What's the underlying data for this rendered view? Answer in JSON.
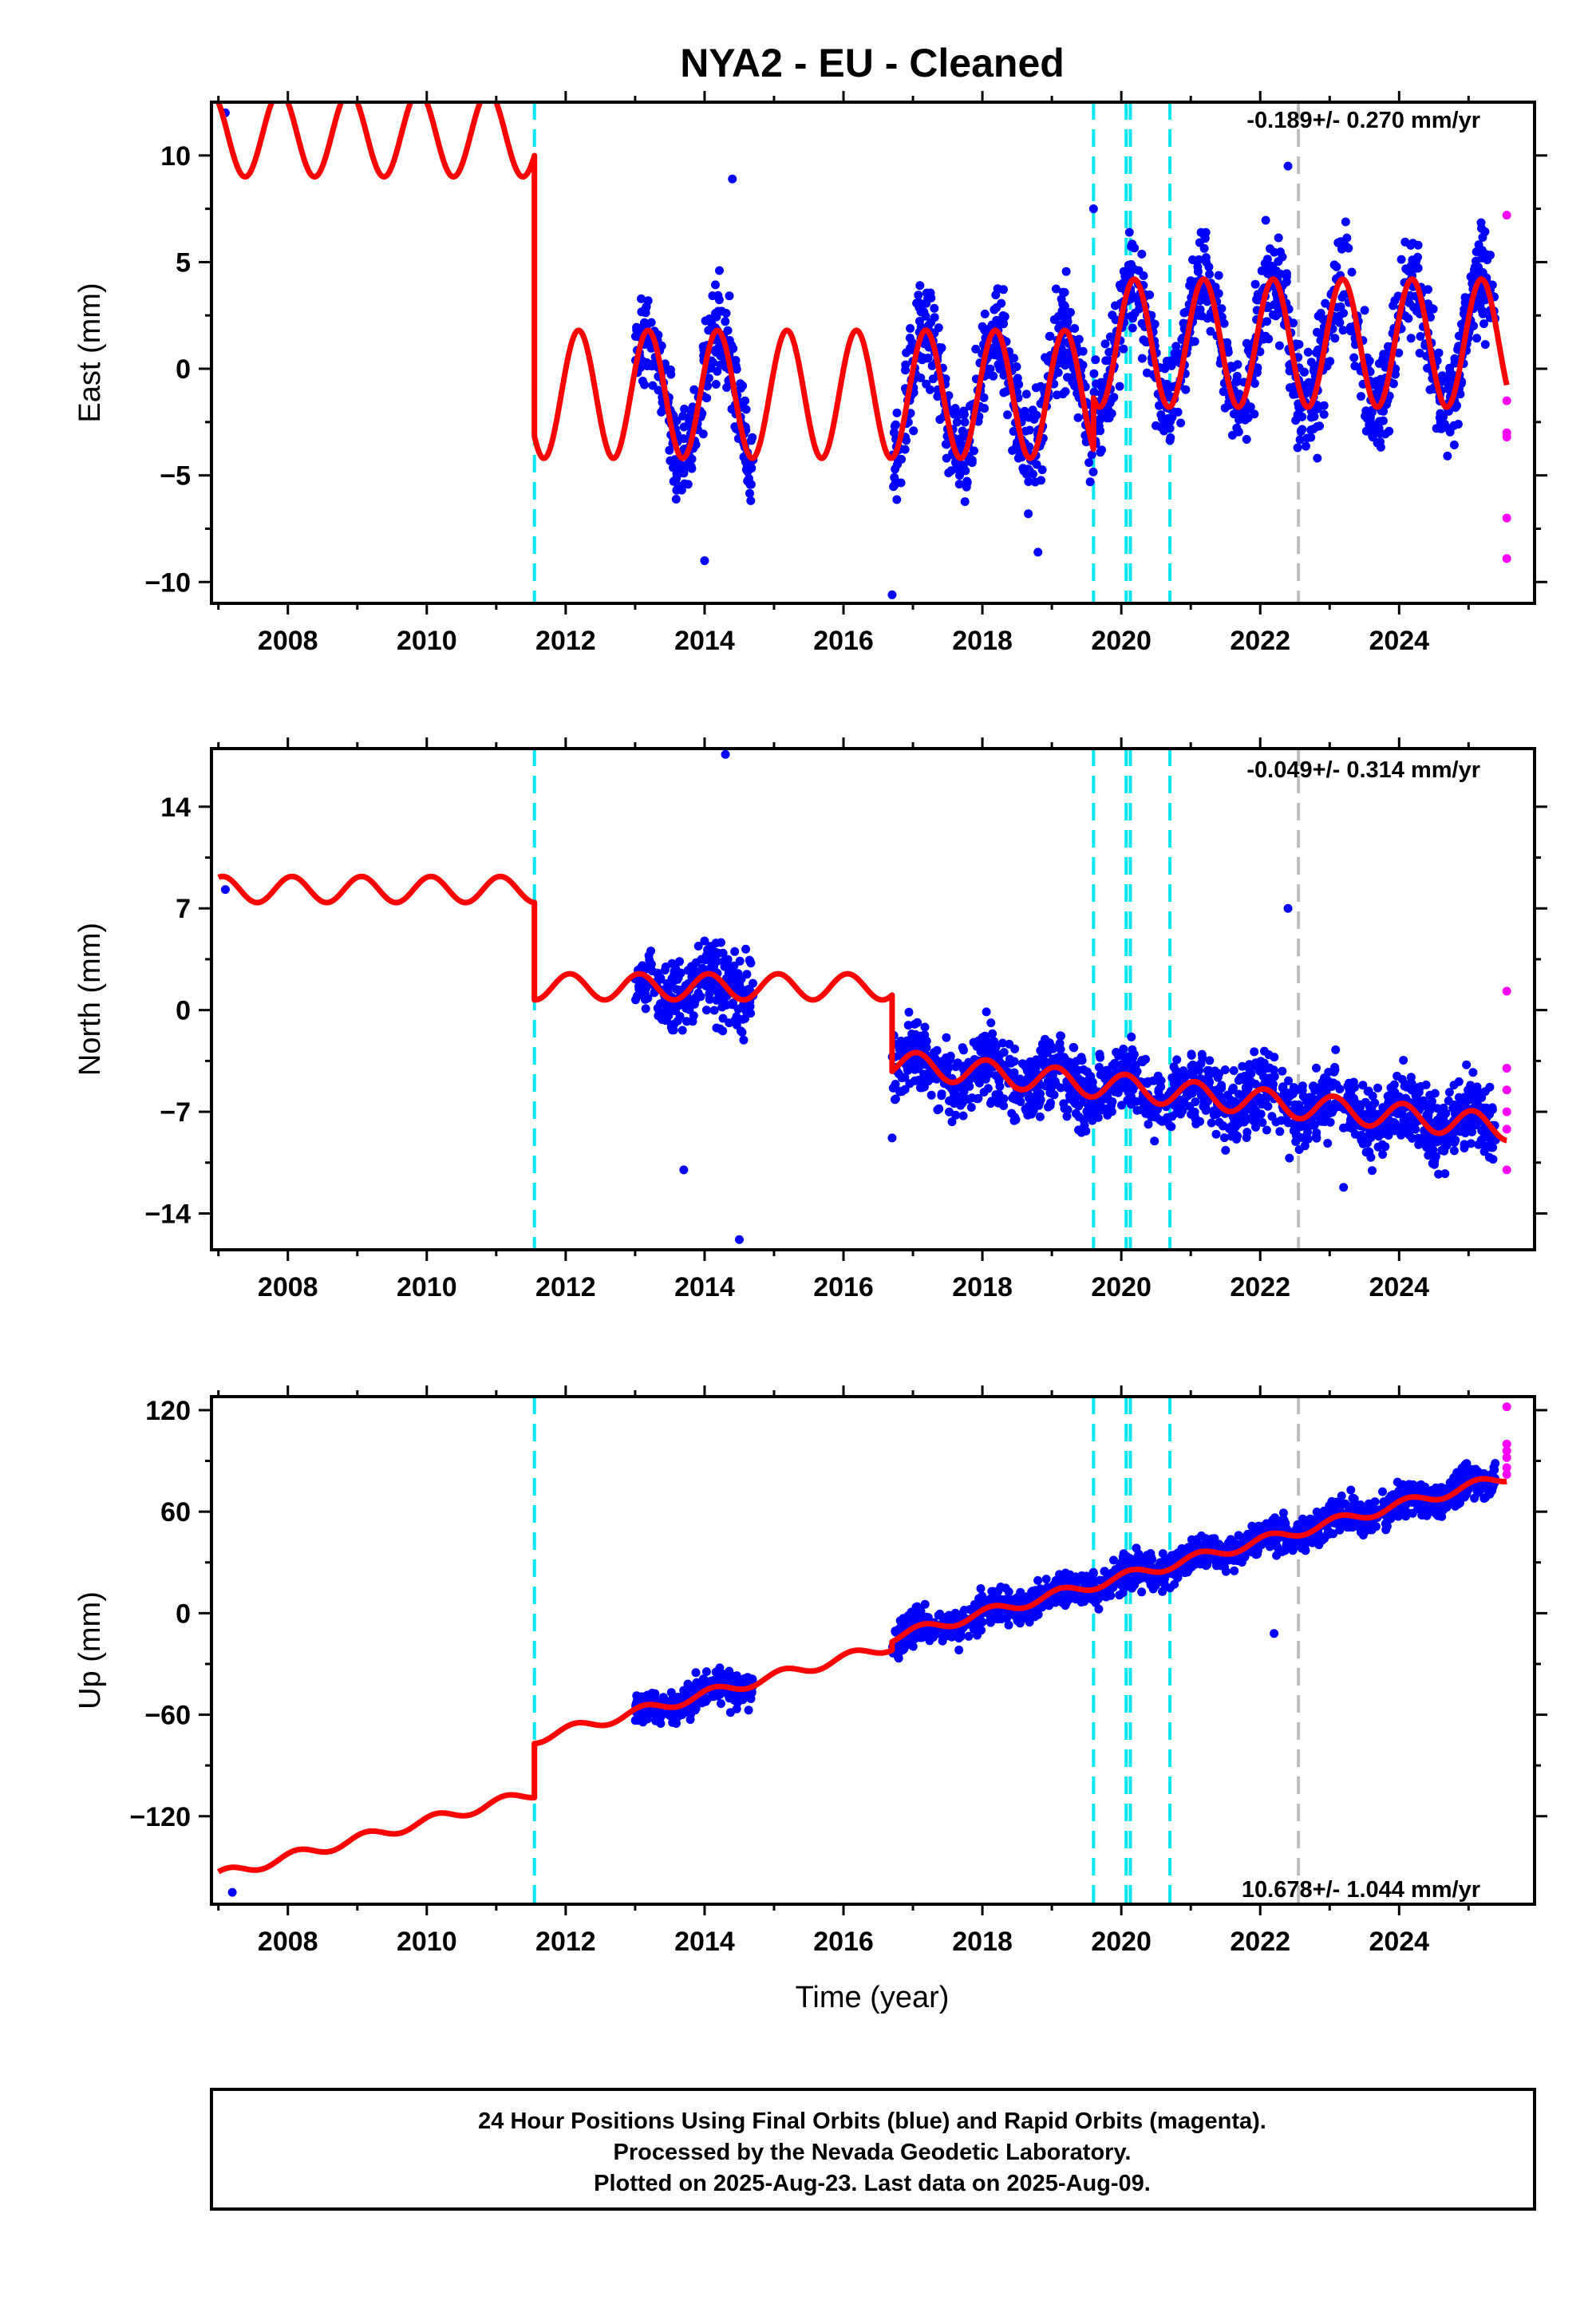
{
  "title": "NYA2  - EU - Cleaned",
  "xlabel": "Time (year)",
  "footer": {
    "line1": "24 Hour Positions Using Final Orbits (blue) and Rapid Orbits (magenta).",
    "line2": "Processed by the Nevada Geodetic Laboratory.",
    "line3": "Plotted on 2025-Aug-23. Last data on 2025-Aug-09."
  },
  "colors": {
    "final_orbits": "#0000ff",
    "rapid_orbits": "#ff00ff",
    "model": "#ff0000",
    "equipment_change": "#00e5ee",
    "earthquake": "#bebebe"
  },
  "chart_data": [
    {
      "type": "scatter",
      "component": "East",
      "ylabel": "East (mm)",
      "rate": "-0.189+/- 0.270 mm/yr",
      "xlim": [
        2006.9,
        2025.95
      ],
      "ylim": [
        -11,
        12.5
      ],
      "xticks": [
        2008,
        2010,
        2012,
        2014,
        2016,
        2018,
        2020,
        2022,
        2024
      ],
      "yticks": [
        -10,
        -5,
        0,
        5,
        10
      ],
      "ytick_labels": [
        "−10",
        "−5",
        "0",
        "5",
        "10"
      ],
      "grid": false,
      "offsets_cyan": [
        2011.55,
        2019.6,
        2020.07,
        2020.13,
        2020.7
      ],
      "offsets_gray": [
        2022.55
      ],
      "model": {
        "segments": [
          {
            "t0": 2007.0,
            "t1": 2011.55,
            "c": 11.0,
            "v": 0.0,
            "amp": 2.0,
            "phase": 2.3
          },
          {
            "t0": 2011.55,
            "t1": 2019.6,
            "c": -1.2,
            "v": 0.0,
            "amp": 3.0,
            "phase": 0.4
          },
          {
            "t0": 2019.6,
            "t1": 2025.55,
            "c": 1.2,
            "v": 0.0,
            "amp": 3.0,
            "phase": 0.4
          }
        ]
      },
      "scatter_bands": [
        [
          2013.0,
          2014.7
        ],
        [
          2016.7,
          2025.4
        ]
      ],
      "scatter_noise": 1.6,
      "outliers": [
        [
          2007.1,
          12.0
        ],
        [
          2014.4,
          8.9
        ],
        [
          2016.7,
          -10.6
        ],
        [
          2022.4,
          9.5
        ],
        [
          2019.6,
          7.5
        ],
        [
          2014.0,
          -9.0
        ],
        [
          2018.8,
          -8.6
        ]
      ],
      "rapid": [
        [
          2025.55,
          7.2
        ],
        [
          2025.55,
          -1.5
        ],
        [
          2025.55,
          -3.0
        ],
        [
          2025.55,
          -3.2
        ],
        [
          2025.55,
          -7.0
        ],
        [
          2025.55,
          -8.9
        ]
      ]
    },
    {
      "type": "scatter",
      "component": "North",
      "ylabel": "North (mm)",
      "rate": "-0.049+/- 0.314 mm/yr",
      "xlim": [
        2006.9,
        2025.95
      ],
      "ylim": [
        -16.5,
        18
      ],
      "xticks": [
        2008,
        2010,
        2012,
        2014,
        2016,
        2018,
        2020,
        2022,
        2024
      ],
      "yticks": [
        -14,
        -7,
        0,
        7,
        14
      ],
      "ytick_labels": [
        "−14",
        "−7",
        "0",
        "7",
        "14"
      ],
      "grid": false,
      "offsets_cyan": [
        2011.55,
        2019.6,
        2020.07,
        2020.13,
        2020.7
      ],
      "offsets_gray": [
        2022.55
      ],
      "model": {
        "segments": [
          {
            "t0": 2007.0,
            "t1": 2011.55,
            "c": 8.3,
            "v": 0.0,
            "amp": 0.9,
            "phase": 1.2
          },
          {
            "t0": 2011.55,
            "t1": 2016.7,
            "c": 1.6,
            "v": 0.0,
            "amp": 0.9,
            "phase": 1.2
          },
          {
            "t0": 2016.7,
            "t1": 2025.55,
            "c": 1.2,
            "v": -0.5,
            "amp": 0.9,
            "phase": 1.2
          }
        ]
      },
      "scatter_bands": [
        [
          2013.0,
          2014.7
        ],
        [
          2016.7,
          2025.4
        ]
      ],
      "scatter_noise": 1.7,
      "outliers": [
        [
          2007.1,
          8.3
        ],
        [
          2014.3,
          17.6
        ],
        [
          2014.5,
          -15.8
        ],
        [
          2013.7,
          -11.0
        ],
        [
          2023.2,
          -12.2
        ],
        [
          2022.4,
          7.0
        ],
        [
          2016.7,
          -8.8
        ]
      ],
      "rapid": [
        [
          2025.55,
          1.3
        ],
        [
          2025.55,
          -4.0
        ],
        [
          2025.55,
          -5.5
        ],
        [
          2025.55,
          -7.0
        ],
        [
          2025.55,
          -8.2
        ],
        [
          2025.55,
          -11.0
        ]
      ]
    },
    {
      "type": "scatter",
      "component": "Up",
      "ylabel": "Up (mm)",
      "rate": "10.678+/- 1.044 mm/yr",
      "xlim": [
        2006.9,
        2025.95
      ],
      "ylim": [
        -172,
        128
      ],
      "xticks": [
        2008,
        2010,
        2012,
        2014,
        2016,
        2018,
        2020,
        2022,
        2024
      ],
      "yticks": [
        -120,
        -60,
        0,
        60,
        120
      ],
      "ytick_labels": [
        "−120",
        "−60",
        "0",
        "60",
        "120"
      ],
      "grid": false,
      "offsets_cyan": [
        2011.55,
        2019.6,
        2020.07,
        2020.13,
        2020.7
      ],
      "offsets_gray": [
        2022.55
      ],
      "model": {
        "segments": [
          {
            "t0": 2007.0,
            "t1": 2011.55,
            "c": -155.0,
            "v": 10.7,
            "amp": 3.0,
            "phase": 0.8
          },
          {
            "t0": 2011.55,
            "t1": 2016.7,
            "c": -123.0,
            "v": 10.7,
            "amp": 3.0,
            "phase": 0.8
          },
          {
            "t0": 2016.7,
            "t1": 2025.55,
            "c": -118.0,
            "v": 10.7,
            "amp": 3.0,
            "phase": 0.8
          }
        ]
      },
      "scatter_bands": [
        [
          2013.0,
          2014.7
        ],
        [
          2016.7,
          2025.4
        ]
      ],
      "scatter_noise": 7.0,
      "outliers": [
        [
          2007.2,
          -165.0
        ],
        [
          2022.2,
          -12.0
        ],
        [
          2024.8,
          80.0
        ]
      ],
      "rapid": [
        [
          2025.55,
          122.0
        ],
        [
          2025.55,
          100.0
        ],
        [
          2025.55,
          96.0
        ],
        [
          2025.55,
          92.0
        ],
        [
          2025.55,
          86.0
        ],
        [
          2025.55,
          82.0
        ]
      ]
    }
  ]
}
